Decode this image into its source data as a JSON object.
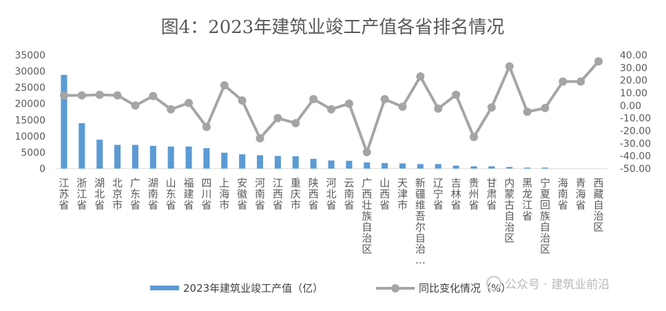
{
  "chart_data": {
    "type": "bar",
    "title": "图4：2023年建筑业竣工产值各省排名情况",
    "categories": [
      "江苏省",
      "浙江省",
      "湖北省",
      "北京市",
      "广东省",
      "湖南省",
      "山东省",
      "福建省",
      "四川省",
      "上海市",
      "安徽省",
      "河南省",
      "江西省",
      "重庆市",
      "陕西省",
      "河北省",
      "云南省",
      "广西壮族自治区",
      "山西省",
      "天津市",
      "新疆维吾尔自治…",
      "辽宁省",
      "吉林省",
      "贵州省",
      "甘肃省",
      "内蒙古自治区",
      "黑龙江省",
      "宁夏回族自治区",
      "海南省",
      "青海省",
      "西藏自治区"
    ],
    "series": [
      {
        "name": "2023年建筑业竣工产值（亿）",
        "type": "bar",
        "axis": "left",
        "color": "#5b9bd5",
        "values": [
          28900,
          14000,
          8900,
          7300,
          7300,
          7000,
          6800,
          6800,
          6300,
          4900,
          4400,
          4100,
          3900,
          3800,
          3000,
          2500,
          2400,
          1900,
          1700,
          1600,
          1400,
          1400,
          900,
          700,
          700,
          500,
          300,
          300,
          0,
          0,
          0
        ]
      },
      {
        "name": "同比变化情况（%）",
        "type": "line",
        "axis": "right",
        "color": "#a5a5a5",
        "values": [
          8,
          8,
          8.5,
          8,
          0,
          7.5,
          -3,
          2,
          -17,
          16,
          4,
          -26,
          -10,
          -14,
          5,
          -3,
          1.5,
          -37,
          5,
          -1,
          23,
          -2.5,
          8.5,
          -25,
          -1.5,
          31,
          -5,
          -2,
          19,
          19,
          35
        ]
      }
    ],
    "y_left": {
      "min": 0,
      "max": 35000,
      "ticks": [
        "0",
        "5000",
        "10000",
        "15000",
        "20000",
        "25000",
        "30000",
        "35000"
      ]
    },
    "y_right": {
      "min": -50,
      "max": 40,
      "ticks": [
        "-50.00",
        "-40.00",
        "-30.00",
        "-20.00",
        "-10.00",
        "0.00",
        "10.00",
        "20.00",
        "30.00",
        "40.00"
      ]
    },
    "legend": {
      "position": "bottom"
    },
    "grid": false
  },
  "watermark": "公众号 · 建筑业前沿"
}
